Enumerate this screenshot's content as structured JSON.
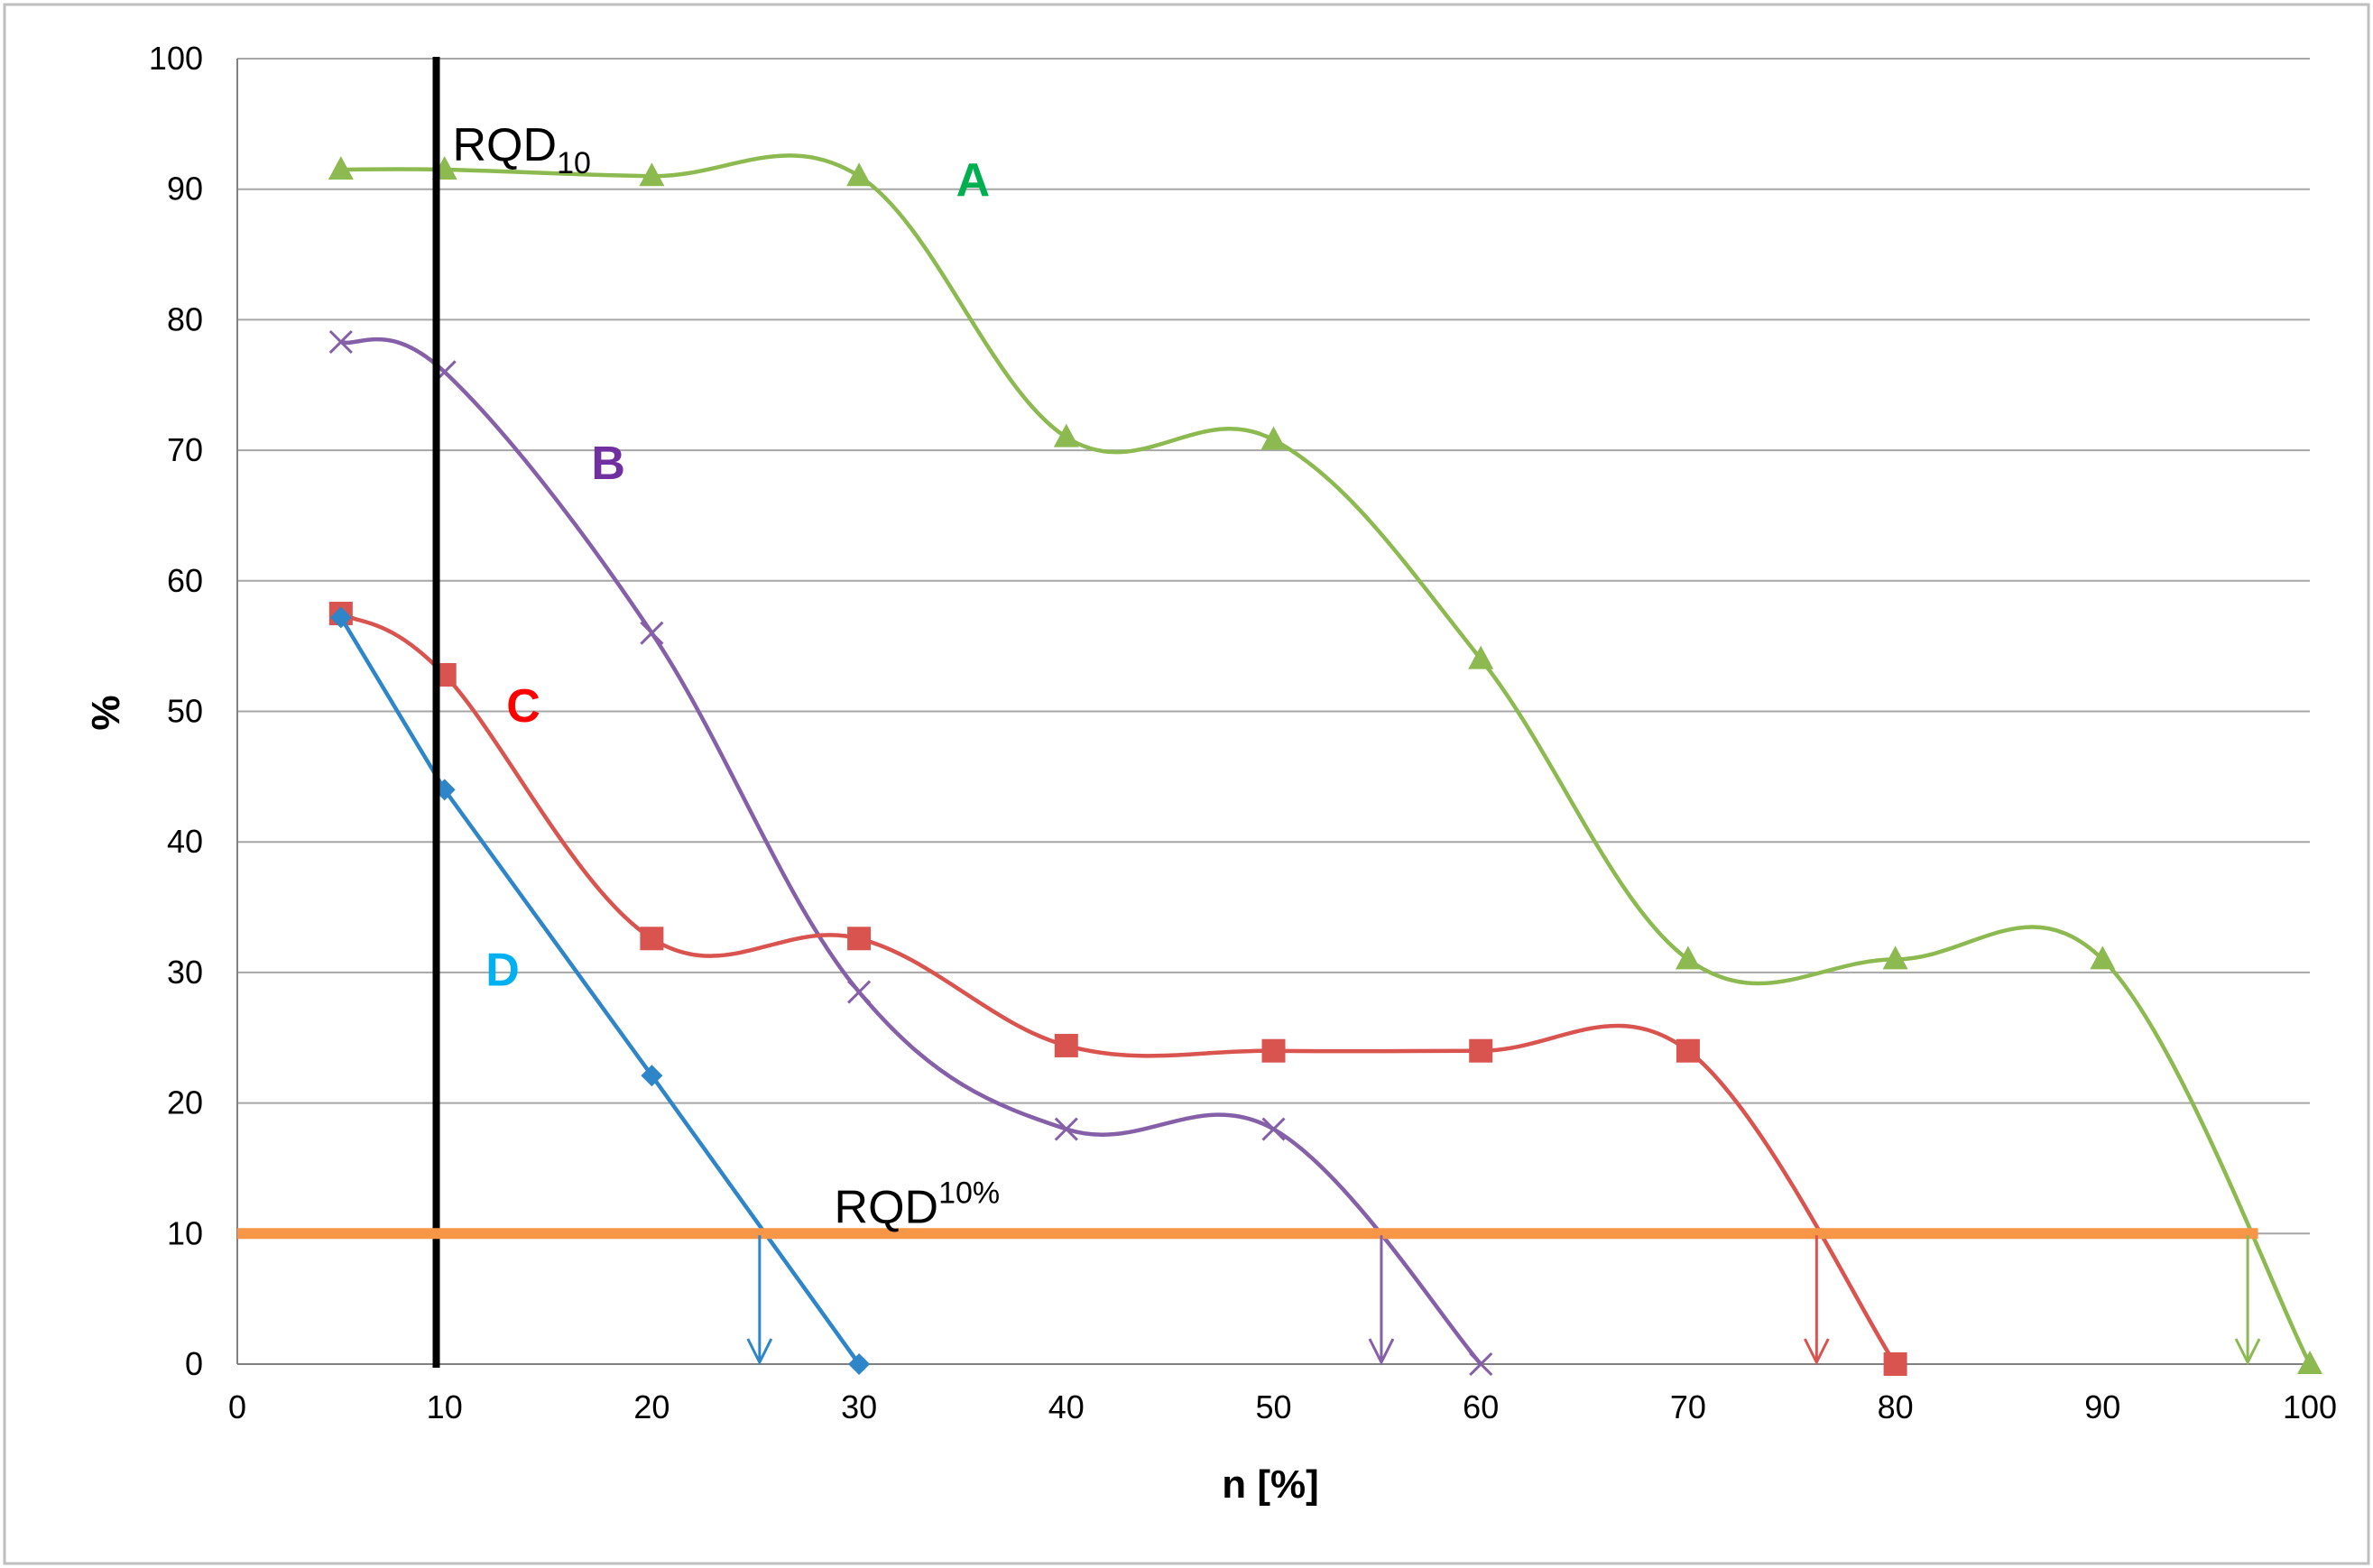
{
  "chart_data": {
    "type": "line",
    "title": "",
    "xlabel": "n [%]",
    "ylabel": "%",
    "xlim": [
      0,
      100
    ],
    "ylim": [
      0,
      100
    ],
    "x_ticks": [
      0,
      10,
      20,
      30,
      40,
      50,
      60,
      70,
      80,
      90,
      100
    ],
    "y_ticks": [
      0,
      10,
      20,
      30,
      40,
      50,
      60,
      70,
      80,
      90,
      100
    ],
    "grid": "horizontal",
    "series": [
      {
        "name": "A",
        "label": "A",
        "color": "#8cba50",
        "label_color": "#00b050",
        "marker": "triangle",
        "x": [
          5,
          10,
          20,
          30,
          40,
          50,
          60,
          70,
          80,
          90,
          100
        ],
        "y": [
          91.5,
          91.5,
          91,
          91,
          71,
          70.8,
          54,
          31,
          31,
          31,
          0
        ],
        "label_at": [
          35.5,
          89.5
        ],
        "rqd10_crossing": 97
      },
      {
        "name": "B",
        "label": "B",
        "color": "#8560a8",
        "label_color": "#7030a0",
        "marker": "x",
        "x": [
          5,
          10,
          20,
          30,
          40,
          50,
          60
        ],
        "y": [
          78.3,
          76,
          56,
          28.5,
          18,
          18,
          0
        ],
        "label_at": [
          17.9,
          67.8
        ],
        "rqd10_crossing": 55.2
      },
      {
        "name": "C",
        "label": "C",
        "color": "#d9534f",
        "label_color": "#ff0000",
        "marker": "square",
        "x": [
          5,
          10,
          20,
          30,
          40,
          50,
          60,
          70,
          80
        ],
        "y": [
          57.5,
          52.8,
          32.6,
          32.6,
          24.4,
          24,
          24,
          24,
          0
        ],
        "label_at": [
          13.8,
          49.2
        ],
        "rqd10_crossing": 76.2
      },
      {
        "name": "D",
        "label": "D",
        "color": "#2e86c8",
        "label_color": "#00b0f0",
        "marker": "diamond",
        "x": [
          5,
          10,
          20,
          30
        ],
        "y": [
          57.2,
          44,
          22.1,
          0
        ],
        "label_at": [
          12.8,
          29
        ],
        "rqd10_crossing": 25.2
      }
    ],
    "annotations": {
      "rqd_vertical": {
        "x": 9.6,
        "label_main": "RQD",
        "label_sub": "10",
        "color": "#000000"
      },
      "rqd_horizontal": {
        "y": 10,
        "label_main": "RQD",
        "label_sup": "10%",
        "color": "#f79646"
      }
    }
  }
}
